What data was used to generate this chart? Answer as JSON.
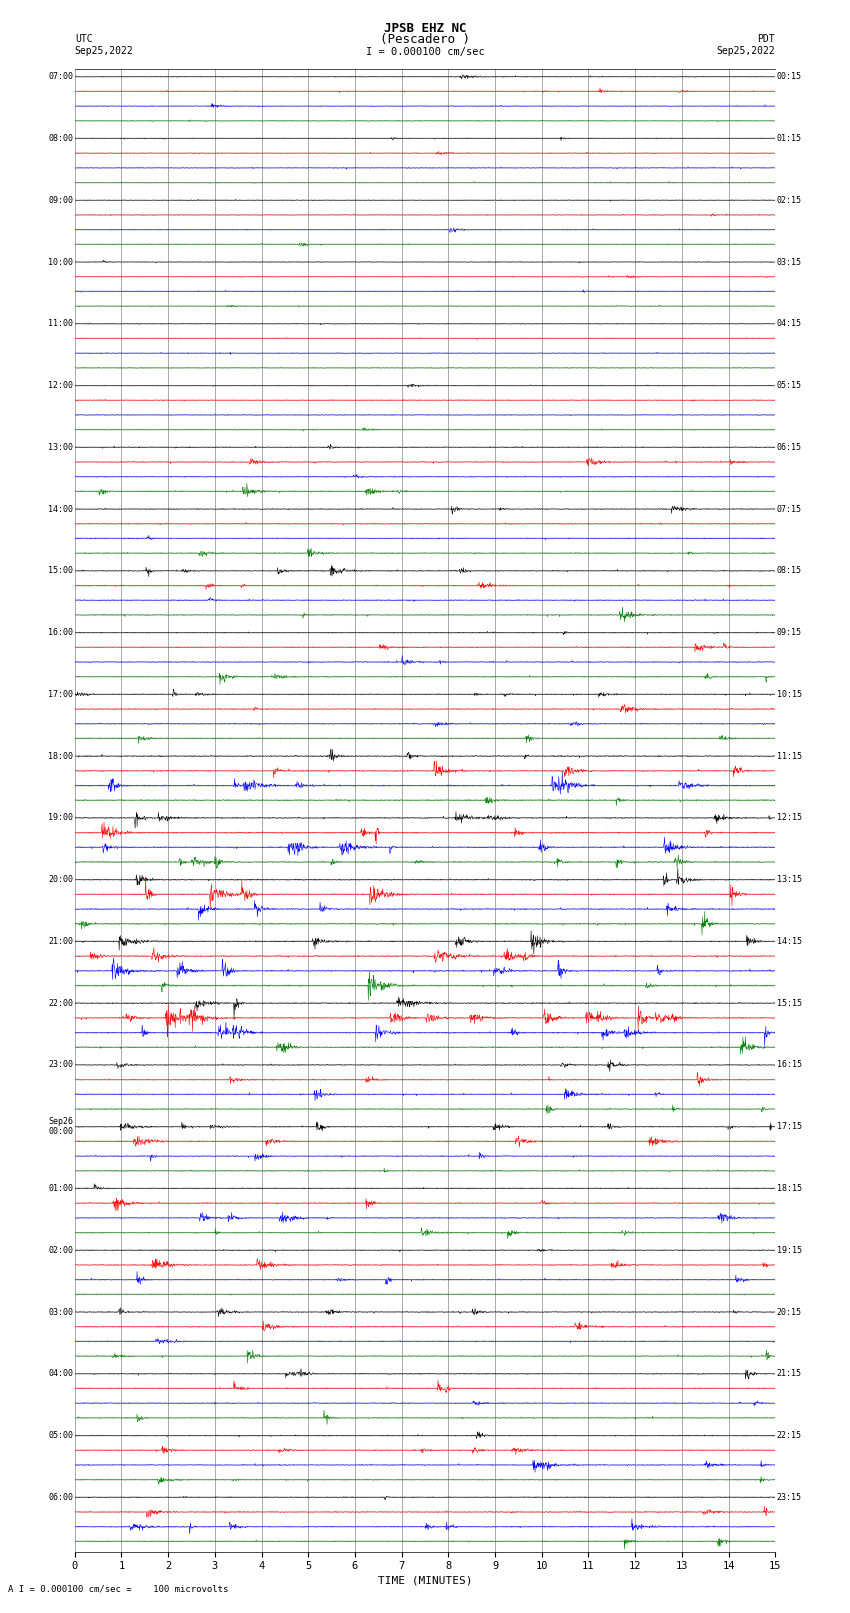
{
  "title_line1": "JPSB EHZ NC",
  "title_line2": "(Pescadero )",
  "scale_label": "I = 0.000100 cm/sec",
  "bottom_label": "A I = 0.000100 cm/sec =    100 microvolts",
  "xlabel": "TIME (MINUTES)",
  "left_header_line1": "UTC",
  "left_header_line2": "Sep25,2022",
  "right_header_line1": "PDT",
  "right_header_line2": "Sep25,2022",
  "utc_labels": [
    "07:00",
    "08:00",
    "09:00",
    "10:00",
    "11:00",
    "12:00",
    "13:00",
    "14:00",
    "15:00",
    "16:00",
    "17:00",
    "18:00",
    "19:00",
    "20:00",
    "21:00",
    "22:00",
    "23:00",
    "Sep26\n00:00",
    "01:00",
    "02:00",
    "03:00",
    "04:00",
    "05:00",
    "06:00"
  ],
  "pdt_labels": [
    "00:15",
    "01:15",
    "02:15",
    "03:15",
    "04:15",
    "05:15",
    "06:15",
    "07:15",
    "08:15",
    "09:15",
    "10:15",
    "11:15",
    "12:15",
    "13:15",
    "14:15",
    "15:15",
    "16:15",
    "17:15",
    "18:15",
    "19:15",
    "20:15",
    "21:15",
    "22:15",
    "23:15"
  ],
  "n_rows": 24,
  "traces_per_row": 4,
  "trace_colors": [
    "black",
    "red",
    "blue",
    "green"
  ],
  "x_ticks": [
    0,
    1,
    2,
    3,
    4,
    5,
    6,
    7,
    8,
    9,
    10,
    11,
    12,
    13,
    14,
    15
  ],
  "background_color": "white",
  "grid_color": "#888888",
  "noise_base_amp": 0.012,
  "seed": 42
}
